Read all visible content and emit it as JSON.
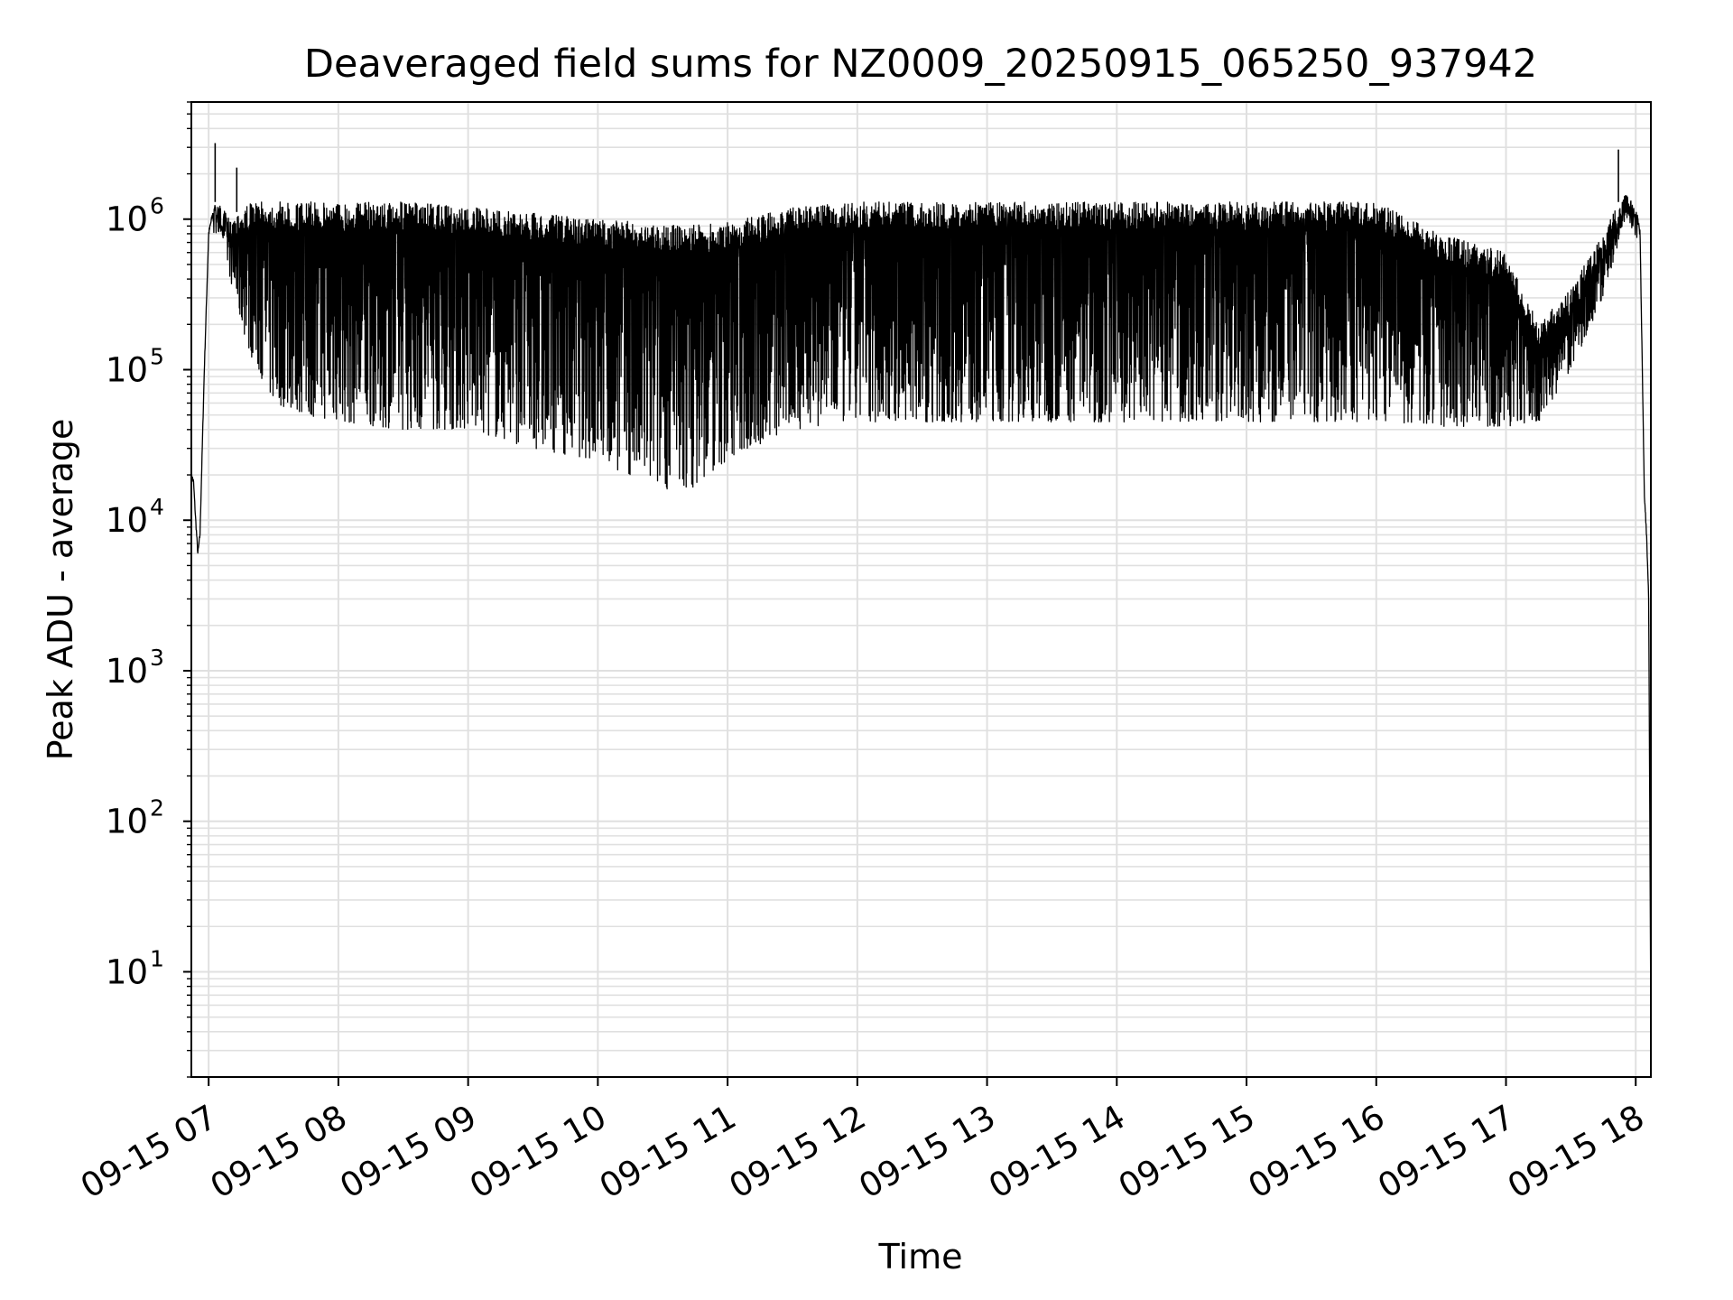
{
  "chart_data": {
    "type": "line",
    "title": "Deaveraged field sums for NZ0009_20250915_065250_937942",
    "xlabel": "Time",
    "ylabel": "Peak ADU - average",
    "yscale": "log",
    "grid": true,
    "xlim": [
      "09-15 06:52",
      "09-15 18:07"
    ],
    "ylim": [
      2,
      6000000
    ],
    "x_ticks": [
      "09-15 07",
      "09-15 08",
      "09-15 09",
      "09-15 10",
      "09-15 11",
      "09-15 12",
      "09-15 13",
      "09-15 14",
      "09-15 15",
      "09-15 16",
      "09-15 17",
      "09-15 18"
    ],
    "y_ticks": [
      {
        "base": "10",
        "exp": "1"
      },
      {
        "base": "10",
        "exp": "2"
      },
      {
        "base": "10",
        "exp": "3"
      },
      {
        "base": "10",
        "exp": "4"
      },
      {
        "base": "10",
        "exp": "5"
      },
      {
        "base": "10",
        "exp": "6"
      }
    ],
    "series": [
      {
        "color": "#000000",
        "x": [
          "09-15 06:52",
          "09-15 06:53",
          "09-15 06:54",
          "09-15 06:55",
          "09-15 06:56",
          "09-15 06:58",
          "09-15 07:00",
          "09-15 07:03",
          "09-15 07:06",
          "09-15 07:10",
          "09-15 07:15",
          "09-15 07:20",
          "09-15 07:30",
          "09-15 07:45",
          "09-15 08:00",
          "09-15 08:30",
          "09-15 09:00",
          "09-15 09:30",
          "09-15 10:00",
          "09-15 10:20",
          "09-15 10:40",
          "09-15 11:00",
          "09-15 11:30",
          "09-15 12:00",
          "09-15 13:00",
          "09-15 14:00",
          "09-15 15:00",
          "09-15 16:00",
          "09-15 16:30",
          "09-15 17:00",
          "09-15 17:15",
          "09-15 17:30",
          "09-15 17:45",
          "09-15 17:55",
          "09-15 18:00",
          "09-15 18:02",
          "09-15 18:04",
          "09-15 18:05",
          "09-15 18:06",
          "09-15 18:07"
        ],
        "upper": [
          20000,
          18000,
          10000,
          6000,
          8000,
          100000,
          800000,
          1300000,
          1200000,
          1000000,
          1200000,
          1300000,
          1300000,
          1300000,
          1300000,
          1300000,
          1200000,
          1100000,
          1000000,
          950000,
          900000,
          950000,
          1200000,
          1300000,
          1300000,
          1300000,
          1300000,
          1300000,
          800000,
          600000,
          200000,
          350000,
          800000,
          1600000,
          1200000,
          800000,
          15000,
          8000,
          3000,
          4
        ],
        "lower": [
          20000,
          18000,
          10000,
          6000,
          8000,
          100000,
          800000,
          1100000,
          800000,
          400000,
          200000,
          120000,
          60000,
          50000,
          45000,
          40000,
          40000,
          30000,
          25000,
          18000,
          15000,
          25000,
          40000,
          45000,
          45000,
          45000,
          45000,
          45000,
          42000,
          42000,
          45000,
          100000,
          300000,
          1000000,
          1000000,
          800000,
          15000,
          8000,
          3000,
          4
        ],
        "spikes": [
          {
            "x": "09-15 07:03",
            "y": 3200000
          },
          {
            "x": "09-15 07:13",
            "y": 2200000
          },
          {
            "x": "09-15 17:52",
            "y": 2900000
          }
        ]
      }
    ]
  }
}
